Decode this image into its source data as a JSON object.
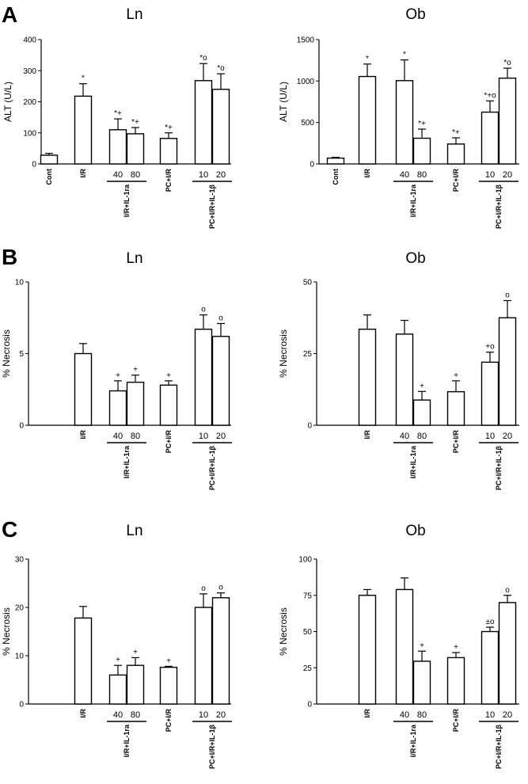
{
  "panels": [
    {
      "letter": "A",
      "row": 0
    },
    {
      "letter": "B",
      "row": 1
    },
    {
      "letter": "C",
      "row": 2
    }
  ],
  "group_labels": {
    "ira": "I/R+IL-1ra",
    "pc": "PC+I/R+IL-1β"
  },
  "sub_labels": {
    "ira": [
      "40",
      "80"
    ],
    "pc": [
      "10",
      "20"
    ]
  },
  "chart_data": [
    {
      "type": "bar",
      "panel": "A",
      "side": "left",
      "title": "Ln",
      "ylabel": "ALT (U/L)",
      "ylim": [
        0,
        400
      ],
      "yticks": [
        0,
        100,
        200,
        300,
        400
      ],
      "show_cont": true,
      "categories": [
        "Cont",
        "I/R",
        "I/R+IL-1ra 40",
        "I/R+IL-1ra 80",
        "PC+I/R",
        "PC+I/R+IL-1β 10",
        "PC+I/R+IL-1β 20"
      ],
      "values": [
        28,
        218,
        110,
        97,
        82,
        268,
        240
      ],
      "errors": [
        6,
        40,
        35,
        20,
        18,
        55,
        50
      ],
      "significance": [
        "",
        "*",
        "*+",
        "*+",
        "*+",
        "*o",
        "*o"
      ]
    },
    {
      "type": "bar",
      "panel": "A",
      "side": "right",
      "title": "Ob",
      "ylabel": "ALT (U/L)",
      "ylim": [
        0,
        1500
      ],
      "yticks": [
        0,
        500,
        1000,
        1500
      ],
      "show_cont": true,
      "categories": [
        "Cont",
        "I/R",
        "I/R+IL-1ra 40",
        "I/R+IL-1ra 80",
        "PC+I/R",
        "PC+I/R+IL-1β 10",
        "PC+I/R+IL-1β 20"
      ],
      "values": [
        70,
        1055,
        1005,
        310,
        240,
        625,
        1035
      ],
      "errors": [
        10,
        150,
        250,
        110,
        75,
        135,
        120
      ],
      "significance": [
        "",
        "*",
        "*",
        "*+",
        "*+",
        "*+o",
        "*o"
      ]
    },
    {
      "type": "bar",
      "panel": "B",
      "side": "left",
      "title": "Ln",
      "ylabel": "% Necrosis",
      "ylim": [
        0,
        10
      ],
      "yticks": [
        0,
        5,
        10
      ],
      "show_cont": false,
      "categories": [
        "I/R",
        "I/R+IL-1ra 40",
        "I/R+IL-1ra 80",
        "PC+I/R",
        "PC+I/R+IL-1β 10",
        "PC+I/R+IL-1β 20"
      ],
      "values": [
        5.0,
        2.4,
        3.0,
        2.8,
        6.7,
        6.2
      ],
      "errors": [
        0.7,
        0.7,
        0.5,
        0.3,
        1.0,
        0.9
      ],
      "significance": [
        "",
        "+",
        "+",
        "+",
        "o",
        "o"
      ]
    },
    {
      "type": "bar",
      "panel": "B",
      "side": "right",
      "title": "Ob",
      "ylabel": "% Necrosis",
      "ylim": [
        0,
        50
      ],
      "yticks": [
        0,
        25,
        50
      ],
      "show_cont": false,
      "categories": [
        "I/R",
        "I/R+IL-1ra 40",
        "I/R+IL-1ra 80",
        "PC+I/R",
        "PC+I/R+IL-1β 10",
        "PC+I/R+IL-1β 20"
      ],
      "values": [
        33.5,
        31.8,
        8.8,
        11.7,
        22.0,
        37.5
      ],
      "errors": [
        5.0,
        4.8,
        3.0,
        3.8,
        3.5,
        6.0
      ],
      "significance": [
        "",
        "",
        "+",
        "+",
        "+o",
        "o"
      ]
    },
    {
      "type": "bar",
      "panel": "C",
      "side": "left",
      "title": "Ln",
      "ylabel": "% Necrosis",
      "ylim": [
        0,
        30
      ],
      "yticks": [
        0,
        10,
        20,
        30
      ],
      "show_cont": false,
      "categories": [
        "I/R",
        "I/R+IL-1ra 40",
        "I/R+IL-1ra 80",
        "PC+I/R",
        "PC+I/R+IL-1β 10",
        "PC+I/R+IL-1β 20"
      ],
      "values": [
        17.8,
        6.0,
        8.0,
        7.6,
        20.0,
        22.0
      ],
      "errors": [
        2.4,
        2.0,
        1.6,
        0.2,
        2.8,
        1.0
      ],
      "significance": [
        "",
        "+",
        "+",
        "+",
        "o",
        "o"
      ]
    },
    {
      "type": "bar",
      "panel": "C",
      "side": "right",
      "title": "Ob",
      "ylabel": "% Necrosis",
      "ylim": [
        0,
        100
      ],
      "yticks": [
        0,
        25,
        50,
        75,
        100
      ],
      "show_cont": false,
      "categories": [
        "I/R",
        "I/R+IL-1ra 40",
        "I/R+IL-1ra 80",
        "PC+I/R",
        "PC+I/R+IL-1β 10",
        "PC+I/R+IL-1β 20"
      ],
      "values": [
        75.0,
        79.0,
        29.5,
        32.0,
        50.0,
        70.0
      ],
      "errors": [
        4.0,
        8.0,
        7.0,
        3.5,
        3.0,
        5.0
      ],
      "significance": [
        "",
        "",
        "+",
        "+",
        "±o",
        "o"
      ]
    }
  ]
}
